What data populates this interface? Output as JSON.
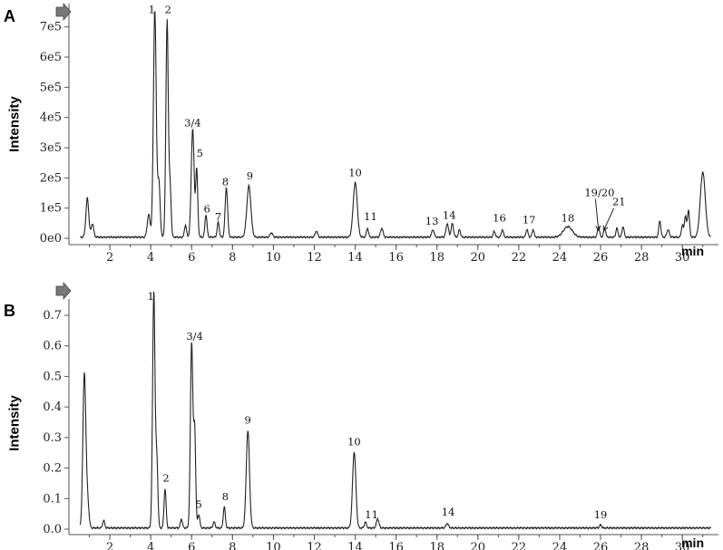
{
  "chart_data": [
    {
      "type": "line",
      "panel": "A",
      "xlabel": "min",
      "ylabel": "Intensity",
      "xlim": [
        0,
        31.5
      ],
      "ylim": [
        0,
        750000
      ],
      "x_ticks": [
        2,
        4,
        6,
        8,
        10,
        12,
        14,
        16,
        18,
        20,
        22,
        24,
        26,
        28,
        30
      ],
      "x_tick_labels": [
        "2",
        "4",
        "6",
        "8",
        "10",
        "12",
        "14",
        "16",
        "18",
        "20",
        "22",
        "24",
        "26",
        "28",
        "30"
      ],
      "y_ticks": [
        0,
        100000,
        200000,
        300000,
        400000,
        500000,
        600000,
        700000
      ],
      "y_tick_labels": [
        "0e0",
        "1e5",
        "2e5",
        "3e5",
        "4e5",
        "5e5",
        "6e5",
        "7e5"
      ],
      "peaks": [
        {
          "t": 0.9,
          "h": 130000,
          "w": 0.07
        },
        {
          "t": 1.15,
          "h": 45000,
          "w": 0.06
        },
        {
          "t": 3.9,
          "h": 75000,
          "w": 0.07
        },
        {
          "t": 4.2,
          "h": 760000,
          "w": 0.07
        },
        {
          "t": 4.4,
          "h": 180000,
          "w": 0.06
        },
        {
          "t": 4.8,
          "h": 720000,
          "w": 0.06
        },
        {
          "t": 4.95,
          "h": 160000,
          "w": 0.05
        },
        {
          "t": 5.7,
          "h": 40000,
          "w": 0.05
        },
        {
          "t": 6.05,
          "h": 360000,
          "w": 0.07
        },
        {
          "t": 6.25,
          "h": 225000,
          "w": 0.05
        },
        {
          "t": 6.7,
          "h": 75000,
          "w": 0.05
        },
        {
          "t": 7.3,
          "h": 50000,
          "w": 0.05
        },
        {
          "t": 7.7,
          "h": 165000,
          "w": 0.06
        },
        {
          "t": 8.8,
          "h": 170000,
          "w": 0.1
        },
        {
          "t": 9.9,
          "h": 15000,
          "w": 0.06
        },
        {
          "t": 12.1,
          "h": 20000,
          "w": 0.06
        },
        {
          "t": 14.0,
          "h": 180000,
          "w": 0.1
        },
        {
          "t": 14.6,
          "h": 30000,
          "w": 0.05
        },
        {
          "t": 15.3,
          "h": 30000,
          "w": 0.06
        },
        {
          "t": 17.8,
          "h": 25000,
          "w": 0.06
        },
        {
          "t": 18.5,
          "h": 45000,
          "w": 0.06
        },
        {
          "t": 18.75,
          "h": 45000,
          "w": 0.06
        },
        {
          "t": 19.1,
          "h": 25000,
          "w": 0.05
        },
        {
          "t": 20.8,
          "h": 20000,
          "w": 0.05
        },
        {
          "t": 21.2,
          "h": 25000,
          "w": 0.05
        },
        {
          "t": 22.4,
          "h": 25000,
          "w": 0.05
        },
        {
          "t": 22.7,
          "h": 25000,
          "w": 0.05
        },
        {
          "t": 24.4,
          "h": 35000,
          "w": 0.22
        },
        {
          "t": 25.9,
          "h": 35000,
          "w": 0.05
        },
        {
          "t": 26.2,
          "h": 30000,
          "w": 0.05
        },
        {
          "t": 26.8,
          "h": 30000,
          "w": 0.05
        },
        {
          "t": 27.1,
          "h": 35000,
          "w": 0.05
        },
        {
          "t": 28.9,
          "h": 55000,
          "w": 0.05
        },
        {
          "t": 29.3,
          "h": 25000,
          "w": 0.06
        },
        {
          "t": 30.0,
          "h": 40000,
          "w": 0.05
        },
        {
          "t": 30.15,
          "h": 70000,
          "w": 0.05
        },
        {
          "t": 30.3,
          "h": 90000,
          "w": 0.05
        },
        {
          "t": 31.0,
          "h": 215000,
          "w": 0.12
        }
      ],
      "annotations": [
        {
          "text": "1",
          "x": 4.05,
          "y": 745000
        },
        {
          "text": "2",
          "x": 4.85,
          "y": 745000
        },
        {
          "text": "3/4",
          "x": 6.05,
          "y": 370000
        },
        {
          "text": "5",
          "x": 6.4,
          "y": 270000
        },
        {
          "text": "6",
          "x": 6.75,
          "y": 85000
        },
        {
          "text": "7",
          "x": 7.3,
          "y": 60000
        },
        {
          "text": "8",
          "x": 7.65,
          "y": 175000
        },
        {
          "text": "9",
          "x": 8.85,
          "y": 195000
        },
        {
          "text": "10",
          "x": 14.0,
          "y": 205000
        },
        {
          "text": "11",
          "x": 14.75,
          "y": 60000
        },
        {
          "text": "13",
          "x": 17.75,
          "y": 45000
        },
        {
          "text": "14",
          "x": 18.6,
          "y": 65000
        },
        {
          "text": "16",
          "x": 21.05,
          "y": 55000
        },
        {
          "text": "17",
          "x": 22.5,
          "y": 50000
        },
        {
          "text": "18",
          "x": 24.4,
          "y": 55000
        },
        {
          "text": "19/20",
          "x": 25.95,
          "y": 140000
        },
        {
          "text": "21",
          "x": 26.9,
          "y": 110000
        }
      ],
      "arrows": [
        {
          "from": [
            25.75,
            130000
          ],
          "to": [
            25.9,
            25000
          ]
        },
        {
          "from": [
            26.65,
            100000
          ],
          "to": [
            26.15,
            25000
          ]
        }
      ]
    },
    {
      "type": "line",
      "panel": "B",
      "xlabel": "min",
      "ylabel": "Intensity",
      "xlim": [
        0,
        31.5
      ],
      "ylim": [
        0,
        0.78
      ],
      "x_ticks": [
        2,
        4,
        6,
        8,
        10,
        12,
        14,
        16,
        18,
        20,
        22,
        24,
        26,
        28,
        30
      ],
      "x_tick_labels": [
        "2",
        "4",
        "6",
        "8",
        "10",
        "12",
        "14",
        "16",
        "18",
        "20",
        "22",
        "24",
        "26",
        "28",
        "30"
      ],
      "y_ticks": [
        0,
        0.1,
        0.2,
        0.3,
        0.4,
        0.5,
        0.6,
        0.7
      ],
      "y_tick_labels": [
        "0.0",
        "0.1",
        "0.2",
        "0.3",
        "0.4",
        "0.5",
        "0.6",
        "0.7"
      ],
      "peaks": [
        {
          "t": 0.75,
          "h": 0.5,
          "w": 0.07
        },
        {
          "t": 0.9,
          "h": 0.1,
          "w": 0.07
        },
        {
          "t": 1.7,
          "h": 0.025,
          "w": 0.05
        },
        {
          "t": 4.15,
          "h": 0.78,
          "w": 0.06
        },
        {
          "t": 4.3,
          "h": 0.22,
          "w": 0.05
        },
        {
          "t": 4.7,
          "h": 0.13,
          "w": 0.05
        },
        {
          "t": 5.5,
          "h": 0.03,
          "w": 0.05
        },
        {
          "t": 6.0,
          "h": 0.61,
          "w": 0.06
        },
        {
          "t": 6.15,
          "h": 0.32,
          "w": 0.05
        },
        {
          "t": 6.35,
          "h": 0.045,
          "w": 0.05
        },
        {
          "t": 7.1,
          "h": 0.02,
          "w": 0.05
        },
        {
          "t": 7.6,
          "h": 0.07,
          "w": 0.05
        },
        {
          "t": 8.75,
          "h": 0.32,
          "w": 0.08
        },
        {
          "t": 13.95,
          "h": 0.25,
          "w": 0.08
        },
        {
          "t": 14.5,
          "h": 0.02,
          "w": 0.05
        },
        {
          "t": 15.1,
          "h": 0.03,
          "w": 0.06
        },
        {
          "t": 18.5,
          "h": 0.015,
          "w": 0.06
        },
        {
          "t": 26.0,
          "h": 0.01,
          "w": 0.05
        }
      ],
      "annotations": [
        {
          "text": "1",
          "x": 4.0,
          "y": 0.75
        },
        {
          "text": "2",
          "x": 4.75,
          "y": 0.155
        },
        {
          "text": "3/4",
          "x": 6.15,
          "y": 0.62
        },
        {
          "text": "5",
          "x": 6.35,
          "y": 0.07
        },
        {
          "text": "8",
          "x": 7.65,
          "y": 0.095
        },
        {
          "text": "9",
          "x": 8.75,
          "y": 0.345
        },
        {
          "text": "10",
          "x": 13.95,
          "y": 0.275
        },
        {
          "text": "11",
          "x": 14.8,
          "y": 0.035
        },
        {
          "text": "14",
          "x": 18.55,
          "y": 0.045
        },
        {
          "text": "19",
          "x": 26.0,
          "y": 0.035
        }
      ]
    }
  ]
}
